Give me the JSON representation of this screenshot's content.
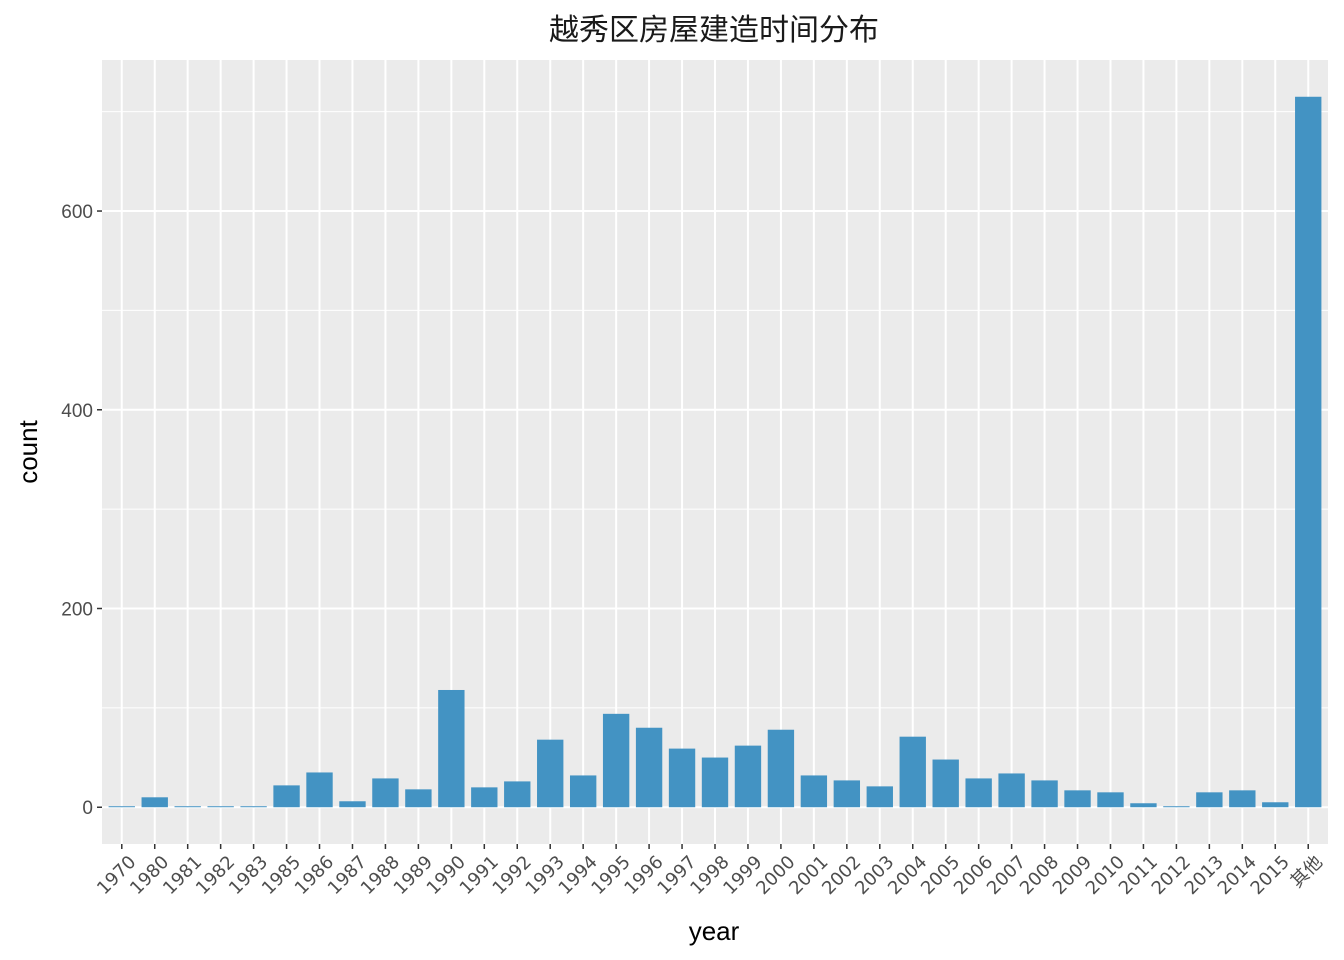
{
  "chart_data": {
    "type": "bar",
    "title": "越秀区房屋建造时间分布",
    "xlabel": "year",
    "ylabel": "count",
    "categories": [
      "1970",
      "1980",
      "1981",
      "1982",
      "1983",
      "1985",
      "1986",
      "1987",
      "1988",
      "1989",
      "1990",
      "1991",
      "1992",
      "1993",
      "1994",
      "1995",
      "1996",
      "1997",
      "1998",
      "1999",
      "2000",
      "2001",
      "2002",
      "2003",
      "2004",
      "2005",
      "2006",
      "2007",
      "2008",
      "2009",
      "2010",
      "2011",
      "2012",
      "2013",
      "2014",
      "2015",
      "其他"
    ],
    "values": [
      1,
      10,
      1,
      1,
      1,
      22,
      35,
      6,
      29,
      18,
      118,
      20,
      26,
      68,
      32,
      94,
      80,
      59,
      50,
      62,
      78,
      32,
      27,
      21,
      71,
      48,
      29,
      34,
      27,
      17,
      15,
      4,
      1,
      15,
      17,
      5,
      715
    ],
    "ylim": [
      -37,
      752
    ],
    "yticks": [
      0,
      200,
      400,
      600
    ],
    "bar_color": "#4393c3",
    "panel_background": "#ebebeb",
    "grid": true,
    "legend": "none"
  }
}
